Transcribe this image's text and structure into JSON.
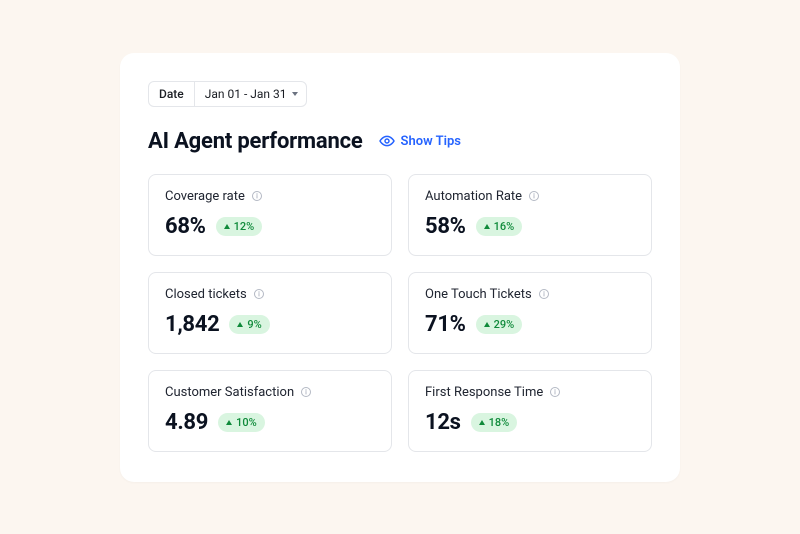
{
  "colors": {
    "page_bg": "#fcf6f0",
    "panel_bg": "#ffffff",
    "border": "#e4e6ea",
    "text_primary": "#0b1220",
    "text_body": "#202531",
    "accent_blue": "#2563ff",
    "delta_bg": "#d9f5e0",
    "delta_text": "#0f8a3a"
  },
  "date_picker": {
    "label": "Date",
    "range": "Jan 01 - Jan 31"
  },
  "header": {
    "title": "AI Agent performance",
    "tips_label": "Show Tips"
  },
  "metrics": [
    {
      "title": "Coverage rate",
      "value": "68%",
      "delta": "12%"
    },
    {
      "title": "Automation Rate",
      "value": "58%",
      "delta": "16%"
    },
    {
      "title": "Closed tickets",
      "value": "1,842",
      "delta": "9%"
    },
    {
      "title": "One Touch Tickets",
      "value": "71%",
      "delta": "29%"
    },
    {
      "title": "Customer Satisfaction",
      "value": "4.89",
      "delta": "10%"
    },
    {
      "title": "First Response Time",
      "value": "12s",
      "delta": "18%"
    }
  ]
}
